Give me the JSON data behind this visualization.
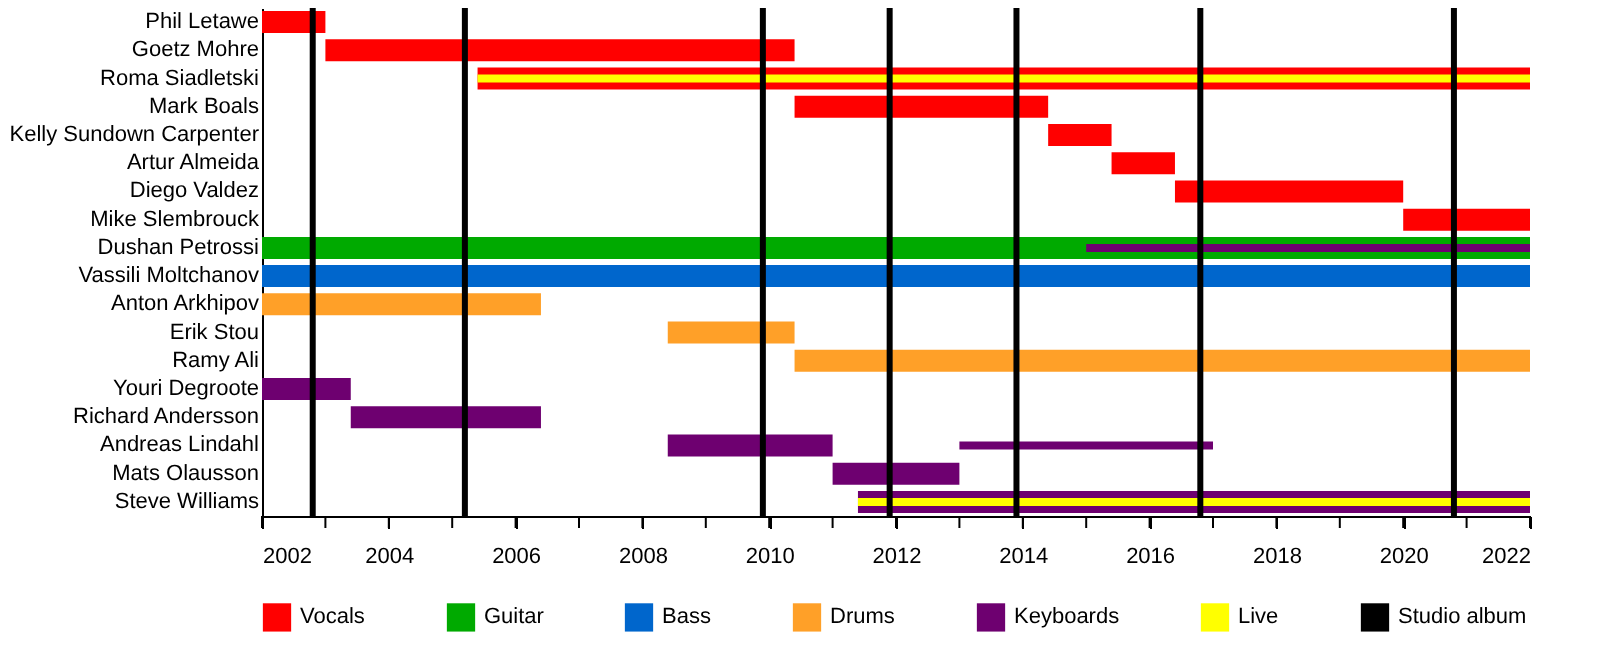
{
  "chart_data": {
    "type": "bar",
    "orientation": "horizontal",
    "legend": "bottom",
    "grid": false,
    "categories": [
      "Phil Letawe",
      "Goetz Mohre",
      "Roma Siadletski",
      "Mark Boals",
      "Kelly Sundown Carpenter",
      "Artur Almeida",
      "Diego Valdez",
      "Mike Slembrouck",
      "Dushan Petrossi",
      "Vassili Moltchanov",
      "Anton Arkhipov",
      "Erik Stou",
      "Ramy Ali",
      "Youri Degroote",
      "Richard Andersson",
      "Andreas Lindahl",
      "Mats Olausson",
      "Steve Williams"
    ],
    "series": [
      {
        "name": "Vocals",
        "color": "#ff0000",
        "base": [
          2002,
          2003.0,
          2005.4,
          2010.4,
          2014.4,
          2015.4,
          2016.4,
          2020.0,
          null,
          null,
          null,
          null,
          null,
          null,
          null,
          null,
          null,
          null
        ],
        "values": [
          1.0,
          7.4,
          16.6,
          4.0,
          1.0,
          1.0,
          3.6,
          2.0,
          null,
          null,
          null,
          null,
          null,
          null,
          null,
          null,
          null,
          null
        ]
      },
      {
        "name": "Guitar",
        "color": "#00aa00",
        "base": [
          null,
          null,
          null,
          null,
          null,
          null,
          null,
          null,
          2002,
          null,
          null,
          null,
          null,
          null,
          null,
          null,
          null,
          null
        ],
        "values": [
          null,
          null,
          null,
          null,
          null,
          null,
          null,
          null,
          20,
          null,
          null,
          null,
          null,
          null,
          null,
          null,
          null,
          null
        ]
      },
      {
        "name": "Bass",
        "color": "#0066cc",
        "base": [
          null,
          null,
          null,
          null,
          null,
          null,
          null,
          null,
          null,
          2002,
          null,
          null,
          null,
          null,
          null,
          null,
          null,
          null
        ],
        "values": [
          null,
          null,
          null,
          null,
          null,
          null,
          null,
          null,
          null,
          20,
          null,
          null,
          null,
          null,
          null,
          null,
          null,
          null
        ]
      },
      {
        "name": "Drums",
        "color": "#ffa028",
        "base": [
          null,
          null,
          null,
          null,
          null,
          null,
          null,
          null,
          null,
          null,
          2002,
          2008.4,
          2010.4,
          null,
          null,
          null,
          null,
          null
        ],
        "values": [
          null,
          null,
          null,
          null,
          null,
          null,
          null,
          null,
          null,
          null,
          4.4,
          2.0,
          11.6,
          null,
          null,
          null,
          null,
          null
        ]
      },
      {
        "name": "Keyboards",
        "color": "#6e0070",
        "base": [
          null,
          null,
          null,
          null,
          null,
          null,
          null,
          null,
          null,
          null,
          null,
          null,
          null,
          2002,
          2003.4,
          2008.4,
          2011.0,
          2011.4
        ],
        "values": [
          null,
          null,
          null,
          null,
          null,
          null,
          null,
          null,
          null,
          null,
          null,
          null,
          null,
          1.4,
          3.0,
          2.6,
          2.0,
          10.6
        ]
      },
      {
        "color": "#6e0070",
        "base": [
          null,
          null,
          null,
          null,
          null,
          null,
          null,
          null,
          2015.0,
          null,
          null,
          null,
          null,
          null,
          null,
          2013.0,
          null,
          null
        ],
        "values": [
          null,
          null,
          null,
          null,
          null,
          null,
          null,
          null,
          7.0,
          null,
          null,
          null,
          null,
          null,
          null,
          4.0,
          null,
          null
        ]
      },
      {
        "name": "Live",
        "color": "#ffff00",
        "base": [
          null,
          null,
          2005.4,
          null,
          null,
          null,
          null,
          null,
          null,
          null,
          null,
          null,
          null,
          null,
          null,
          null,
          null,
          2011.4
        ],
        "values": [
          null,
          null,
          16.6,
          null,
          null,
          null,
          null,
          null,
          null,
          null,
          null,
          null,
          null,
          null,
          null,
          null,
          null,
          10.6
        ]
      }
    ],
    "xlim": [
      2002,
      2022
    ],
    "xticks": [
      2002,
      {
        "value": 2003,
        "label": null
      },
      2004,
      {
        "value": 2005,
        "label": null
      },
      2006,
      {
        "value": 2007,
        "label": null
      },
      2008,
      {
        "value": 2009,
        "label": null
      },
      2010,
      {
        "value": 2011,
        "label": null
      },
      2012,
      {
        "value": 2013,
        "label": null
      },
      2014,
      {
        "value": 2015,
        "label": null
      },
      2016,
      {
        "value": 2017,
        "label": null
      },
      2018,
      {
        "value": 2019,
        "label": null
      },
      2020,
      {
        "value": 2021,
        "label": null
      },
      2022
    ],
    "ref_lines": [
      {
        "axis": "x",
        "value": 2002.8,
        "label": "Studio album",
        "color": "#000000"
      },
      {
        "axis": "x",
        "value": 2005.2,
        "color": "#000000"
      },
      {
        "axis": "x",
        "value": 2009.9,
        "color": "#000000"
      },
      {
        "axis": "x",
        "value": 2011.9,
        "color": "#000000"
      },
      {
        "axis": "x",
        "value": 2013.9,
        "color": "#000000"
      },
      {
        "axis": "x",
        "value": 2016.8,
        "color": "#000000"
      },
      {
        "axis": "x",
        "value": 2020.8,
        "color": "#000000"
      }
    ]
  }
}
